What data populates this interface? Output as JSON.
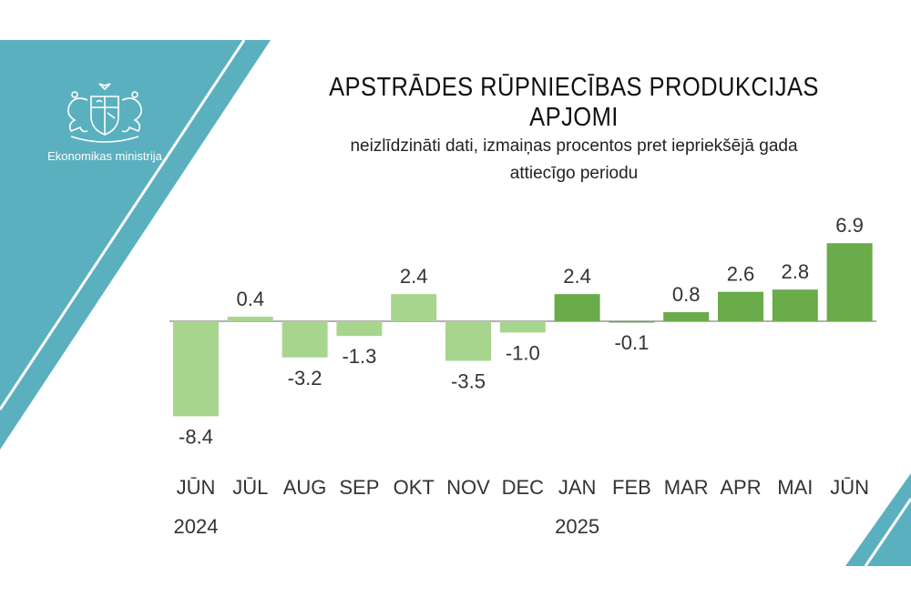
{
  "ministry": "Ekonomikas ministrija",
  "icons": {
    "logo": "coat-of-arms-icon"
  },
  "colors": {
    "teal": "#5ab0bf",
    "light_green": "#a8d58e",
    "dark_green": "#6aab4a",
    "axis": "#999999"
  },
  "chart_data": {
    "type": "bar",
    "title": "APSTRĀDES RŪPNIECĪBAS PRODUKCIJAS APJOMI",
    "subtitle_line1": "neizlīdzināti dati, izmaiņas procentos pret iepriekšējā gada",
    "subtitle_line2": "attiecīgo periodu",
    "categories": [
      "JŪN",
      "JŪL",
      "AUG",
      "SEP",
      "OKT",
      "NOV",
      "DEC",
      "JAN",
      "FEB",
      "MAR",
      "APR",
      "MAI",
      "JŪN"
    ],
    "year_labels": [
      "2024",
      "",
      "",
      "",
      "",
      "",
      "",
      "2025",
      "",
      "",
      "",
      "",
      ""
    ],
    "values": [
      -8.4,
      0.4,
      -3.2,
      -1.3,
      2.4,
      -3.5,
      -1.0,
      2.4,
      -0.1,
      0.8,
      2.6,
      2.8,
      6.9
    ],
    "value_labels": [
      "-8.4",
      "0.4",
      "-3.2",
      "-1.3",
      "2.4",
      "-3.5",
      "-1.0",
      "2.4",
      "-0.1",
      "0.8",
      "2.6",
      "2.8",
      "6.9"
    ],
    "series_shade": [
      "light",
      "light",
      "light",
      "light",
      "light",
      "light",
      "light",
      "dark",
      "dark",
      "dark",
      "dark",
      "dark",
      "dark"
    ],
    "xlabel": "",
    "ylabel": "",
    "ylim": [
      -8.4,
      6.9
    ],
    "grid": false,
    "legend": "none"
  }
}
